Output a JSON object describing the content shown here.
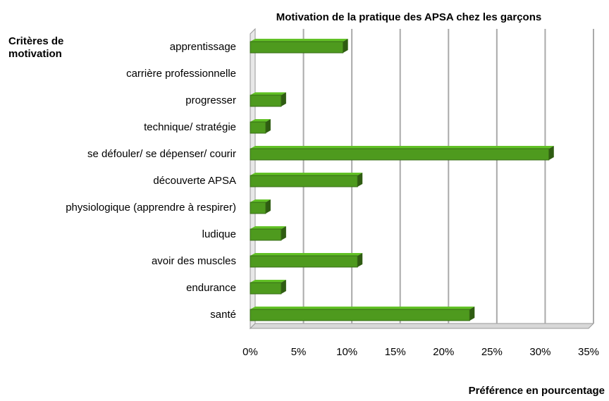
{
  "chart_data": {
    "type": "bar",
    "orientation": "horizontal",
    "title": "Motivation de la pratique des APSA chez les garçons",
    "y_axis_label": "Critères de motivation",
    "x_axis_label": "Préférence en pourcentage",
    "categories": [
      "apprentissage",
      "carrière professionnelle",
      "progresser",
      "technique/ stratégie",
      "se défouler/ se dépenser/ courir",
      "découverte APSA",
      "physiologique (apprendre à respirer)",
      "ludique",
      "avoir des muscles",
      "endurance",
      "santé"
    ],
    "values": [
      9.6,
      0,
      3.2,
      1.6,
      30.9,
      11.1,
      1.6,
      3.2,
      11.1,
      3.2,
      22.7
    ],
    "color": "#4e9a1e",
    "xlim": [
      0,
      35
    ],
    "xticks": [
      {
        "value": 0,
        "label": "0%"
      },
      {
        "value": 5,
        "label": "5%"
      },
      {
        "value": 10,
        "label": "10%"
      },
      {
        "value": 15,
        "label": "15%"
      },
      {
        "value": 20,
        "label": "20%"
      },
      {
        "value": 25,
        "label": "25%"
      },
      {
        "value": 30,
        "label": "30%"
      },
      {
        "value": 35,
        "label": "35%"
      }
    ],
    "grid": true
  }
}
